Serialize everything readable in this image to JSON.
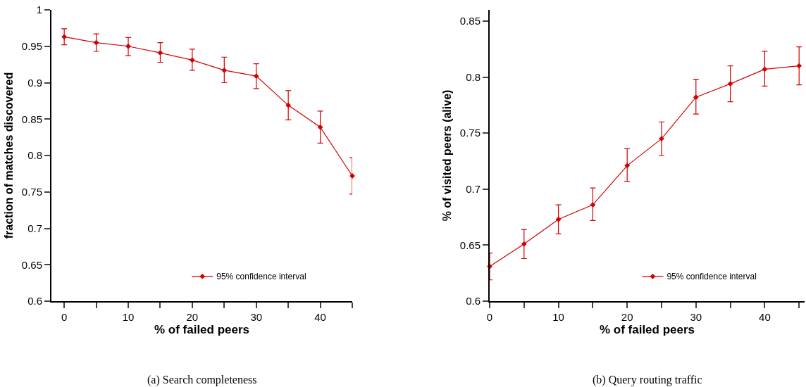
{
  "chart_data": [
    {
      "type": "line",
      "xlabel": "% of failed peers",
      "ylabel": "fraction of matches discovered",
      "x": [
        0,
        5,
        10,
        15,
        20,
        25,
        30,
        35,
        40,
        45
      ],
      "series": [
        {
          "name": "95% confidence interval",
          "color": "#d40000",
          "values": [
            0.963,
            0.955,
            0.95,
            0.941,
            0.931,
            0.917,
            0.909,
            0.869,
            0.839,
            0.772
          ],
          "errors": [
            [
              0.952,
              0.974
            ],
            [
              0.943,
              0.967
            ],
            [
              0.937,
              0.962
            ],
            [
              0.928,
              0.955
            ],
            [
              0.917,
              0.946
            ],
            [
              0.9,
              0.935
            ],
            [
              0.892,
              0.926
            ],
            [
              0.849,
              0.889
            ],
            [
              0.817,
              0.861
            ],
            [
              0.747,
              0.797
            ]
          ]
        }
      ],
      "xlim": [
        -2,
        45
      ],
      "xticks": [
        0,
        {
          "value": 5,
          "label": null
        },
        10,
        {
          "value": 15,
          "label": null
        },
        20,
        {
          "value": 25,
          "label": null
        },
        30,
        {
          "value": 35,
          "label": null
        },
        40,
        {
          "value": 45,
          "label": null
        }
      ],
      "ylim": [
        0.6,
        1
      ],
      "yticks": [
        0.6,
        0.65,
        0.7,
        0.75,
        0.8,
        0.85,
        0.9,
        0.95,
        1
      ],
      "grid": false,
      "legend": "bottom right",
      "marker": "diamond",
      "line_style": "solid",
      "annotations": [
        "(a) Search completeness"
      ]
    },
    {
      "type": "line",
      "xlabel": "% of failed peers",
      "ylabel": "% of visited peers (alive)",
      "x": [
        0,
        5,
        10,
        15,
        20,
        25,
        30,
        35,
        40,
        45
      ],
      "series": [
        {
          "name": "95% confidence interval",
          "color": "#d40000",
          "values": [
            0.631,
            0.651,
            0.673,
            0.686,
            0.721,
            0.745,
            0.782,
            0.794,
            0.807,
            0.81
          ],
          "errors": [
            [
              0.619,
              0.643
            ],
            [
              0.638,
              0.664
            ],
            [
              0.66,
              0.686
            ],
            [
              0.672,
              0.701
            ],
            [
              0.707,
              0.736
            ],
            [
              0.73,
              0.76
            ],
            [
              0.767,
              0.798
            ],
            [
              0.778,
              0.81
            ],
            [
              0.792,
              0.823
            ],
            [
              0.793,
              0.827
            ]
          ]
        }
      ],
      "xlim": [
        0,
        45.8
      ],
      "xticks": [
        0,
        {
          "value": 5,
          "label": null
        },
        10,
        {
          "value": 15,
          "label": null
        },
        20,
        {
          "value": 25,
          "label": null
        },
        30,
        {
          "value": 35,
          "label": null
        },
        40,
        {
          "value": 45,
          "label": null
        }
      ],
      "ylim": [
        0.6,
        0.86
      ],
      "yticks": [
        0.6,
        0.65,
        0.7,
        0.75,
        0.8,
        0.85
      ],
      "grid": false,
      "legend": "bottom right",
      "marker": "diamond",
      "line_style": "solid",
      "annotations": [
        "(b) Query routing traffic"
      ]
    }
  ]
}
